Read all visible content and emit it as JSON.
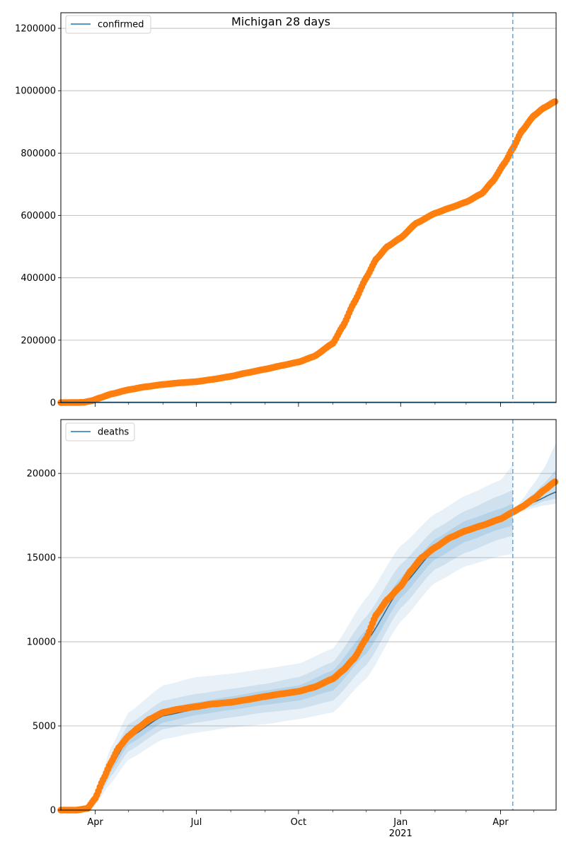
{
  "figure": {
    "title": "Michigan 28 days"
  },
  "chart_data": [
    {
      "type": "scatter",
      "panel": "top",
      "legend": {
        "label": "confirmed",
        "placement": "upper-left"
      },
      "ylim": [
        0,
        1250000
      ],
      "yticks": [
        0,
        200000,
        400000,
        600000,
        800000,
        1000000,
        1200000
      ],
      "ytick_labels": [
        "0",
        "200000",
        "400000",
        "600000",
        "800000",
        "1000000",
        "1200000"
      ],
      "grid": "y",
      "forecast_line": "2021-04-12",
      "points": [
        [
          "2020-03-01",
          0
        ],
        [
          "2020-03-15",
          50
        ],
        [
          "2020-03-22",
          1000
        ],
        [
          "2020-03-29",
          6000
        ],
        [
          "2020-04-05",
          15000
        ],
        [
          "2020-04-15",
          27000
        ],
        [
          "2020-05-01",
          41000
        ],
        [
          "2020-05-15",
          50000
        ],
        [
          "2020-06-01",
          58000
        ],
        [
          "2020-06-15",
          63000
        ],
        [
          "2020-07-01",
          67000
        ],
        [
          "2020-07-15",
          74000
        ],
        [
          "2020-08-01",
          84000
        ],
        [
          "2020-08-15",
          95000
        ],
        [
          "2020-09-01",
          107000
        ],
        [
          "2020-09-15",
          118000
        ],
        [
          "2020-10-01",
          130000
        ],
        [
          "2020-10-15",
          148000
        ],
        [
          "2020-11-01",
          190000
        ],
        [
          "2020-11-10",
          245000
        ],
        [
          "2020-11-20",
          320000
        ],
        [
          "2020-12-01",
          400000
        ],
        [
          "2020-12-10",
          460000
        ],
        [
          "2020-12-20",
          500000
        ],
        [
          "2021-01-01",
          528000
        ],
        [
          "2021-01-15",
          575000
        ],
        [
          "2021-02-01",
          607000
        ],
        [
          "2021-02-15",
          625000
        ],
        [
          "2021-03-01",
          643000
        ],
        [
          "2021-03-15",
          670000
        ],
        [
          "2021-03-25",
          710000
        ],
        [
          "2021-04-05",
          770000
        ],
        [
          "2021-04-12",
          815000
        ],
        [
          "2021-04-20",
          870000
        ],
        [
          "2021-05-01",
          920000
        ],
        [
          "2021-05-10",
          945000
        ],
        [
          "2021-05-20",
          965000
        ]
      ]
    },
    {
      "type": "scatter",
      "panel": "bottom",
      "legend": {
        "label": "deaths",
        "placement": "upper-left"
      },
      "ylim": [
        0,
        23200
      ],
      "yticks": [
        0,
        5000,
        10000,
        15000,
        20000
      ],
      "ytick_labels": [
        "0",
        "5000",
        "10000",
        "15000",
        "20000"
      ],
      "grid": "y",
      "forecast_line": "2021-04-12",
      "xlim": [
        "2020-03-01",
        "2021-05-21"
      ],
      "xticks": [
        {
          "date": "2020-04-01",
          "label": "Apr"
        },
        {
          "date": "2020-07-01",
          "label": "Jul"
        },
        {
          "date": "2020-10-01",
          "label": "Oct"
        },
        {
          "date": "2021-01-01",
          "label": "Jan",
          "sublabel": "2021"
        },
        {
          "date": "2021-04-01",
          "label": "Apr"
        }
      ],
      "points": [
        [
          "2020-03-01",
          0
        ],
        [
          "2020-03-15",
          0
        ],
        [
          "2020-03-25",
          100
        ],
        [
          "2020-04-01",
          700
        ],
        [
          "2020-04-08",
          1800
        ],
        [
          "2020-04-15",
          2800
        ],
        [
          "2020-04-22",
          3700
        ],
        [
          "2020-05-01",
          4400
        ],
        [
          "2020-05-10",
          4900
        ],
        [
          "2020-05-20",
          5400
        ],
        [
          "2020-06-01",
          5800
        ],
        [
          "2020-06-15",
          6000
        ],
        [
          "2020-07-01",
          6150
        ],
        [
          "2020-07-15",
          6300
        ],
        [
          "2020-08-01",
          6400
        ],
        [
          "2020-08-15",
          6550
        ],
        [
          "2020-09-01",
          6750
        ],
        [
          "2020-09-15",
          6900
        ],
        [
          "2020-10-01",
          7050
        ],
        [
          "2020-10-15",
          7300
        ],
        [
          "2020-11-01",
          7800
        ],
        [
          "2020-11-10",
          8300
        ],
        [
          "2020-11-20",
          9000
        ],
        [
          "2020-12-01",
          10200
        ],
        [
          "2020-12-10",
          11600
        ],
        [
          "2020-12-20",
          12500
        ],
        [
          "2021-01-01",
          13300
        ],
        [
          "2021-01-10",
          14200
        ],
        [
          "2021-01-20",
          15000
        ],
        [
          "2021-02-01",
          15600
        ],
        [
          "2021-02-15",
          16200
        ],
        [
          "2021-03-01",
          16600
        ],
        [
          "2021-03-15",
          16900
        ],
        [
          "2021-04-01",
          17300
        ],
        [
          "2021-04-12",
          17700
        ],
        [
          "2021-04-20",
          18000
        ],
        [
          "2021-05-01",
          18500
        ],
        [
          "2021-05-10",
          19000
        ],
        [
          "2021-05-20",
          19500
        ]
      ],
      "fit": [
        [
          "2020-03-20",
          0
        ],
        [
          "2020-04-01",
          500
        ],
        [
          "2020-04-15",
          2600
        ],
        [
          "2020-05-01",
          4300
        ],
        [
          "2020-06-01",
          5600
        ],
        [
          "2020-07-01",
          6000
        ],
        [
          "2020-08-01",
          6350
        ],
        [
          "2020-09-01",
          6700
        ],
        [
          "2020-10-01",
          7000
        ],
        [
          "2020-11-01",
          7700
        ],
        [
          "2020-12-01",
          10000
        ],
        [
          "2021-01-01",
          13200
        ],
        [
          "2021-02-01",
          15500
        ],
        [
          "2021-03-01",
          16550
        ],
        [
          "2021-04-01",
          17300
        ],
        [
          "2021-04-12",
          17650
        ],
        [
          "2021-05-01",
          18300
        ],
        [
          "2021-05-21",
          18900
        ]
      ],
      "bands": [
        {
          "opacity": 0.1,
          "x": [
            "2020-03-20",
            "2020-04-01",
            "2020-04-15",
            "2020-05-01",
            "2020-06-01",
            "2020-07-01",
            "2020-08-01",
            "2020-09-01",
            "2020-10-01",
            "2020-11-01",
            "2020-12-01",
            "2021-01-01",
            "2021-02-01",
            "2021-03-01",
            "2021-04-01",
            "2021-04-12"
          ],
          "lo": [
            0,
            300,
            1600,
            3000,
            4200,
            4600,
            4900,
            5100,
            5400,
            5800,
            7800,
            11200,
            13500,
            14500,
            15100,
            15200
          ],
          "hi": [
            0,
            900,
            3700,
            5800,
            7400,
            7900,
            8100,
            8400,
            8700,
            9600,
            12600,
            15700,
            17600,
            18700,
            19600,
            20500
          ]
        },
        {
          "opacity": 0.12,
          "x": [
            "2020-03-20",
            "2020-04-01",
            "2020-04-15",
            "2020-05-01",
            "2020-06-01",
            "2020-07-01",
            "2020-08-01",
            "2020-09-01",
            "2020-10-01",
            "2020-11-01",
            "2020-12-01",
            "2021-01-01",
            "2021-02-01",
            "2021-03-01",
            "2021-04-01",
            "2021-04-12"
          ],
          "lo": [
            0,
            380,
            2000,
            3500,
            4800,
            5200,
            5500,
            5800,
            6000,
            6500,
            8600,
            12000,
            14300,
            15300,
            16100,
            16300
          ],
          "hi": [
            0,
            700,
            3200,
            5100,
            6500,
            6900,
            7200,
            7500,
            7900,
            8800,
            11500,
            14600,
            16700,
            17800,
            18700,
            19000
          ]
        },
        {
          "opacity": 0.14,
          "x": [
            "2020-03-20",
            "2020-04-01",
            "2020-04-15",
            "2020-05-01",
            "2020-06-01",
            "2020-07-01",
            "2020-08-01",
            "2020-09-01",
            "2020-10-01",
            "2020-11-01",
            "2020-12-01",
            "2021-01-01",
            "2021-02-01",
            "2021-03-01",
            "2021-04-01",
            "2021-04-12"
          ],
          "lo": [
            0,
            440,
            2300,
            3900,
            5200,
            5650,
            5950,
            6250,
            6500,
            7100,
            9300,
            12600,
            14900,
            15950,
            16700,
            16900
          ],
          "hi": [
            0,
            600,
            2900,
            4700,
            6000,
            6400,
            6750,
            7100,
            7400,
            8300,
            10700,
            13800,
            16100,
            17200,
            17900,
            18200
          ]
        },
        {
          "opacity": 0.12,
          "x": [
            "2021-04-12",
            "2021-04-20",
            "2021-05-01",
            "2021-05-10",
            "2021-05-21"
          ],
          "lo": [
            17650,
            17750,
            17950,
            18100,
            18200
          ],
          "hi": [
            17650,
            18400,
            19400,
            20300,
            21800
          ]
        },
        {
          "opacity": 0.14,
          "x": [
            "2021-04-12",
            "2021-04-20",
            "2021-05-01",
            "2021-05-10",
            "2021-05-21"
          ],
          "lo": [
            17650,
            17850,
            18100,
            18350,
            18500
          ],
          "hi": [
            17650,
            18200,
            18800,
            19400,
            20200
          ]
        }
      ]
    }
  ],
  "colors": {
    "scatter": "#ff7f0e",
    "fit": "#1f77b4",
    "band": "#1f77b4",
    "grid": "#b0b0b0",
    "vline": "#7aa6c8"
  }
}
